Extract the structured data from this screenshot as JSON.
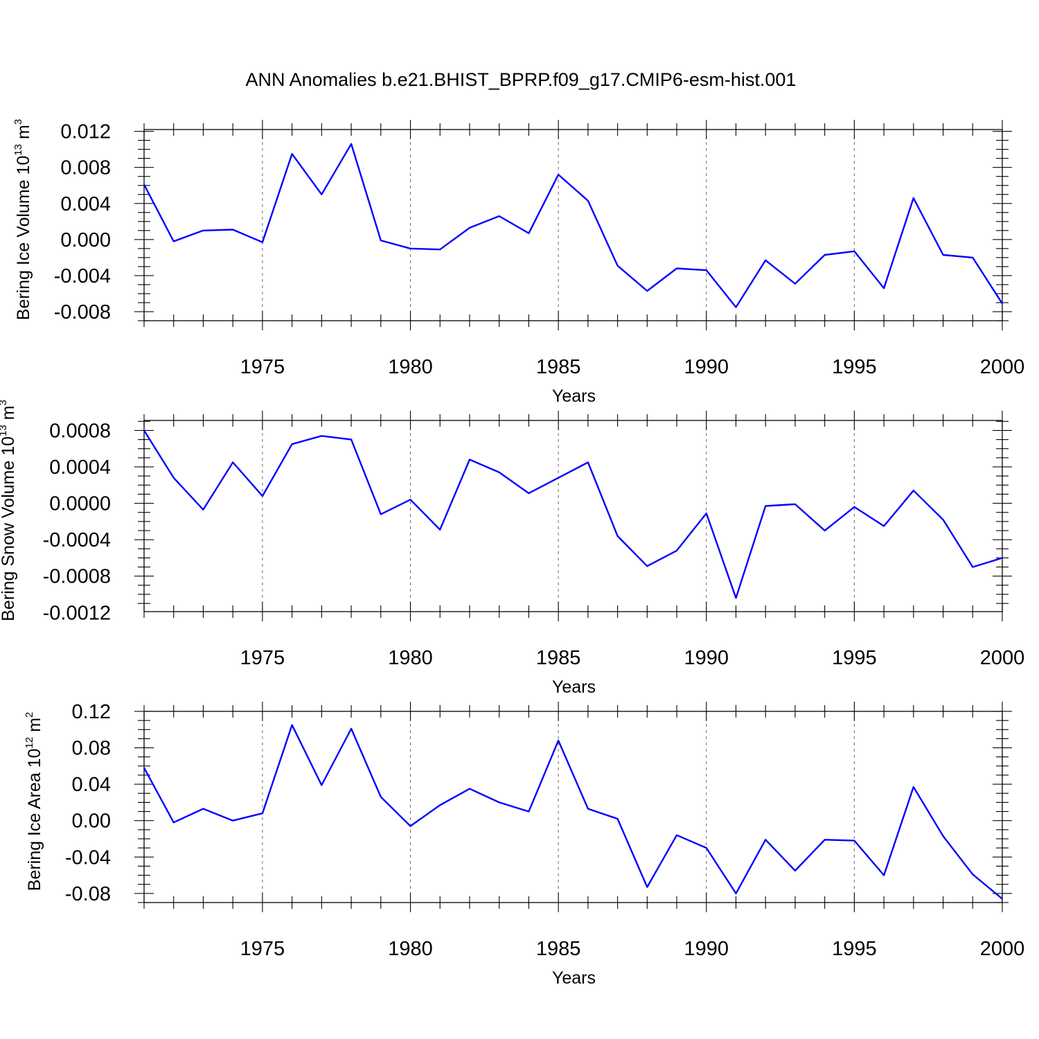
{
  "title": "ANN Anomalies b.e21.BHIST_BPRP.f09_g17.CMIP6-esm-hist.001",
  "colors": {
    "series": "#0000ff",
    "axis": "#000000",
    "grid": "#666666"
  },
  "chart_data": [
    {
      "type": "line",
      "ylabel_main": "Bering Ice Volume 10",
      "ylabel_exp": "13",
      "ylabel_unit": "m",
      "ylabel_unit_exp": "3",
      "xlabel": "Years",
      "xlim": [
        1971,
        2000
      ],
      "ylim": [
        -0.009,
        0.0122
      ],
      "yticks": [
        -0.008,
        -0.004,
        0.0,
        0.004,
        0.008,
        0.012
      ],
      "ytick_labels": [
        "-0.008",
        "-0.004",
        "0.000",
        "0.004",
        "0.008",
        "0.012"
      ],
      "xticks": [
        1975,
        1980,
        1985,
        1990,
        1995,
        2000
      ],
      "xtick_labels": [
        "1975",
        "1980",
        "1985",
        "1990",
        "1995",
        "2000"
      ],
      "x": [
        1971,
        1972,
        1973,
        1974,
        1975,
        1976,
        1977,
        1978,
        1979,
        1980,
        1981,
        1982,
        1983,
        1984,
        1985,
        1986,
        1987,
        1988,
        1989,
        1990,
        1991,
        1992,
        1993,
        1994,
        1995,
        1996,
        1997,
        1998,
        1999,
        2000
      ],
      "values": [
        0.0061,
        -0.0002,
        0.001,
        0.0011,
        -0.0003,
        0.0095,
        0.005,
        0.0106,
        -0.0001,
        -0.001,
        -0.0011,
        0.0013,
        0.0026,
        0.0007,
        0.0072,
        0.0043,
        -0.0029,
        -0.0057,
        -0.0032,
        -0.0034,
        -0.0075,
        -0.0023,
        -0.0049,
        -0.0017,
        -0.0013,
        -0.0054,
        0.0046,
        -0.0017,
        -0.002,
        -0.0071
      ]
    },
    {
      "type": "line",
      "ylabel_main": "Bering Snow Volume 10",
      "ylabel_exp": "13",
      "ylabel_unit": "m",
      "ylabel_unit_exp": "3",
      "xlabel": "Years",
      "xlim": [
        1971,
        2000
      ],
      "ylim": [
        -0.00119,
        0.00091
      ],
      "yticks": [
        -0.0012,
        -0.0008,
        -0.0004,
        0.0,
        0.0004,
        0.0008
      ],
      "ytick_labels": [
        "-0.0012",
        "-0.0008",
        "-0.0004",
        "0.0000",
        "0.0004",
        "0.0008"
      ],
      "xticks": [
        1975,
        1980,
        1985,
        1990,
        1995,
        2000
      ],
      "xtick_labels": [
        "1975",
        "1980",
        "1985",
        "1990",
        "1995",
        "2000"
      ],
      "x": [
        1971,
        1972,
        1973,
        1974,
        1975,
        1976,
        1977,
        1978,
        1979,
        1980,
        1981,
        1982,
        1983,
        1984,
        1985,
        1986,
        1987,
        1988,
        1989,
        1990,
        1991,
        1992,
        1993,
        1994,
        1995,
        1996,
        1997,
        1998,
        1999,
        2000
      ],
      "values": [
        0.0008,
        0.00028,
        -7e-05,
        0.00045,
        8e-05,
        0.00065,
        0.00074,
        0.0007,
        -0.00012,
        4e-05,
        -0.00029,
        0.00048,
        0.00034,
        0.00011,
        0.00028,
        0.00045,
        -0.00036,
        -0.00069,
        -0.00052,
        -0.00011,
        -0.00104,
        -3e-05,
        -1e-05,
        -0.0003,
        -4e-05,
        -0.00025,
        0.00014,
        -0.00018,
        -0.0007,
        -0.0006
      ]
    },
    {
      "type": "line",
      "ylabel_main": "Bering Ice Area 10",
      "ylabel_exp": "12",
      "ylabel_unit": "m",
      "ylabel_unit_exp": "2",
      "xlabel": "Years",
      "xlim": [
        1971,
        2000
      ],
      "ylim": [
        -0.09,
        0.12
      ],
      "yticks": [
        -0.08,
        -0.04,
        0.0,
        0.04,
        0.08,
        0.12
      ],
      "ytick_labels": [
        "-0.08",
        "-0.04",
        "0.00",
        "0.04",
        "0.08",
        "0.12"
      ],
      "xticks": [
        1975,
        1980,
        1985,
        1990,
        1995,
        2000
      ],
      "xtick_labels": [
        "1975",
        "1980",
        "1985",
        "1990",
        "1995",
        "2000"
      ],
      "x": [
        1971,
        1972,
        1973,
        1974,
        1975,
        1976,
        1977,
        1978,
        1979,
        1980,
        1981,
        1982,
        1983,
        1984,
        1985,
        1986,
        1987,
        1988,
        1989,
        1990,
        1991,
        1992,
        1993,
        1994,
        1995,
        1996,
        1997,
        1998,
        1999,
        2000
      ],
      "values": [
        0.058,
        -0.002,
        0.013,
        0.0,
        0.008,
        0.105,
        0.039,
        0.101,
        0.026,
        -0.006,
        0.017,
        0.035,
        0.02,
        0.01,
        0.088,
        0.013,
        0.002,
        -0.073,
        -0.016,
        -0.03,
        -0.08,
        -0.021,
        -0.055,
        -0.021,
        -0.022,
        -0.06,
        0.037,
        -0.017,
        -0.059,
        -0.086
      ]
    }
  ]
}
